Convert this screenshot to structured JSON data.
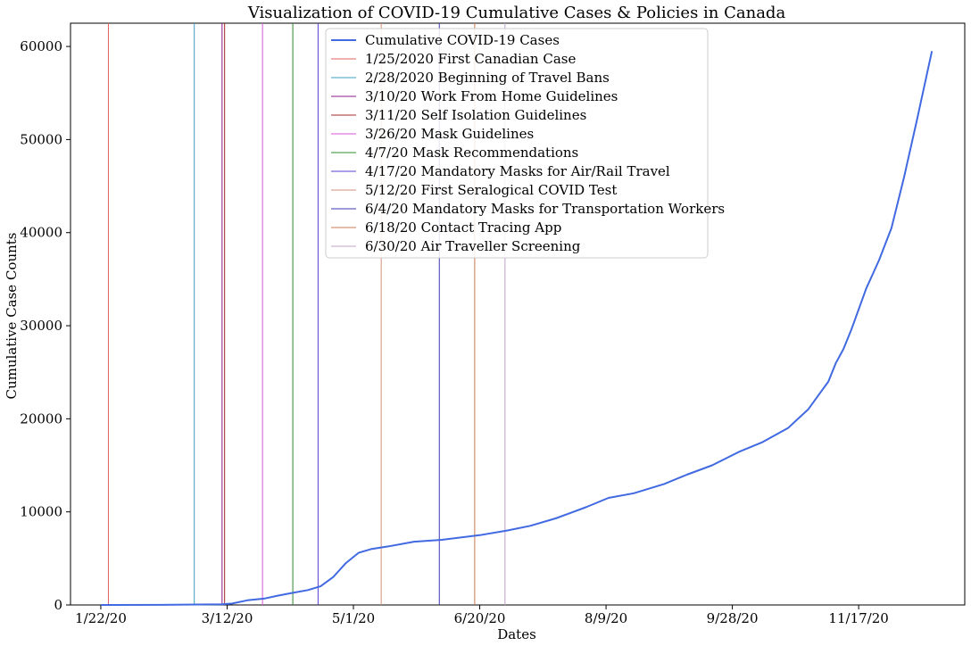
{
  "chart_data": {
    "type": "line",
    "title": "Visualization of COVID-19 Cumulative Cases & Policies in Canada",
    "xlabel": "Dates",
    "ylabel": "Cumulative Case Counts",
    "x_ticks": [
      "1/22/20",
      "3/12/20",
      "5/1/20",
      "6/20/20",
      "8/9/20",
      "9/28/20",
      "11/17/20"
    ],
    "y_ticks": [
      0,
      10000,
      20000,
      30000,
      40000,
      50000,
      60000
    ],
    "xlim": [
      "2020-01-10",
      "2020-12-29"
    ],
    "ylim": [
      0,
      62500
    ],
    "legend_placement": "top-center",
    "series": [
      {
        "name": "Cumulative COVID-19 Cases",
        "color": "#4169e1",
        "points": [
          [
            "2020-01-22",
            0
          ],
          [
            "2020-02-15",
            10
          ],
          [
            "2020-03-10",
            80
          ],
          [
            "2020-03-14",
            150
          ],
          [
            "2020-03-20",
            500
          ],
          [
            "2020-03-27",
            700
          ],
          [
            "2020-04-01",
            1000
          ],
          [
            "2020-04-07",
            1300
          ],
          [
            "2020-04-13",
            1600
          ],
          [
            "2020-04-18",
            2000
          ],
          [
            "2020-04-23",
            3000
          ],
          [
            "2020-04-28",
            4500
          ],
          [
            "2020-05-03",
            5600
          ],
          [
            "2020-05-08",
            6000
          ],
          [
            "2020-05-15",
            6300
          ],
          [
            "2020-05-25",
            6800
          ],
          [
            "2020-06-05",
            7000
          ],
          [
            "2020-06-20",
            7500
          ],
          [
            "2020-07-01",
            8000
          ],
          [
            "2020-07-10",
            8500
          ],
          [
            "2020-07-20",
            9300
          ],
          [
            "2020-08-01",
            10500
          ],
          [
            "2020-08-10",
            11500
          ],
          [
            "2020-08-20",
            12000
          ],
          [
            "2020-09-01",
            13000
          ],
          [
            "2020-09-10",
            14000
          ],
          [
            "2020-09-20",
            15000
          ],
          [
            "2020-10-01",
            16500
          ],
          [
            "2020-10-10",
            17500
          ],
          [
            "2020-10-20",
            19000
          ],
          [
            "2020-10-28",
            21000
          ],
          [
            "2020-11-01",
            22500
          ],
          [
            "2020-11-05",
            24000
          ],
          [
            "2020-11-08",
            26000
          ],
          [
            "2020-11-11",
            27500
          ],
          [
            "2020-11-14",
            29500
          ],
          [
            "2020-11-16",
            31000
          ],
          [
            "2020-11-20",
            34000
          ],
          [
            "2020-11-25",
            37000
          ],
          [
            "2020-11-30",
            40500
          ],
          [
            "2020-12-05",
            46000
          ],
          [
            "2020-12-10",
            52000
          ],
          [
            "2020-12-16",
            59500
          ]
        ]
      }
    ],
    "policies": [
      {
        "label": "1/25/2020 First Canadian Case",
        "date": "2020-01-25",
        "color": "#e06060"
      },
      {
        "label": "2/28/2020 Beginning of Travel Bans",
        "date": "2020-02-28",
        "color": "#3a9fbf"
      },
      {
        "label": "3/10/20 Work From Home Guidelines",
        "date": "2020-03-10",
        "color": "#8b1a8b"
      },
      {
        "label": "3/11/20 Self Isolation Guidelines",
        "date": "2020-03-11",
        "color": "#a52a2a"
      },
      {
        "label": "3/26/20 Mask Guidelines",
        "date": "2020-03-26",
        "color": "#da55da"
      },
      {
        "label": "4/7/20 Mask Recommendations",
        "date": "2020-04-07",
        "color": "#2e8b2e"
      },
      {
        "label": "4/17/20 Mandatory Masks for Air/Rail Travel",
        "date": "2020-04-17",
        "color": "#5a3fd6"
      },
      {
        "label": "5/12/20 First Seralogical COVID Test",
        "date": "2020-05-12",
        "color": "#d2917a"
      },
      {
        "label": "6/4/20 Mandatory Masks for Transportation Workers",
        "date": "2020-06-04",
        "color": "#3a3ab0"
      },
      {
        "label": "6/18/20 Contact Tracing App",
        "date": "2020-06-18",
        "color": "#c87850"
      },
      {
        "label": "6/30/20 Air Traveller Screening",
        "date": "2020-06-30",
        "color": "#c0a0c8"
      }
    ]
  }
}
